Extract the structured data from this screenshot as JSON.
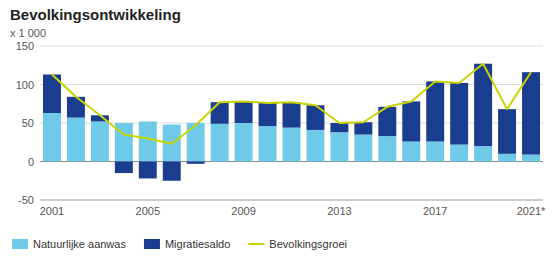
{
  "chart_data": {
    "type": "bar",
    "title": "Bevolkingsontwikkeling",
    "y_label": "x 1 000",
    "stacked": true,
    "categories": [
      "2001",
      null,
      null,
      null,
      "2005",
      null,
      null,
      null,
      "2009",
      null,
      null,
      null,
      "2013",
      null,
      null,
      null,
      "2017",
      null,
      null,
      null,
      "2021*"
    ],
    "series": [
      {
        "name": "Natuurlijke aanwas",
        "color": "#6ecae8",
        "values": [
          63,
          57,
          52,
          50,
          52,
          48,
          50,
          49,
          50,
          46,
          44,
          41,
          38,
          35,
          33,
          26,
          26,
          22,
          20,
          10,
          9
        ]
      },
      {
        "name": "Migratiesaldo",
        "color": "#1a3d8f",
        "values": [
          50,
          27,
          8,
          -15,
          -22,
          -25,
          -3,
          28,
          28,
          30,
          33,
          32,
          12,
          16,
          38,
          52,
          78,
          80,
          107,
          58,
          107
        ]
      },
      {
        "name": "Bevolkingsgroei",
        "type": "line",
        "color": "#c8d400",
        "values": [
          113,
          84,
          60,
          35,
          30,
          23,
          47,
          77,
          78,
          76,
          77,
          73,
          50,
          51,
          71,
          78,
          104,
          102,
          127,
          68,
          116
        ]
      }
    ],
    "ylim": [
      -50,
      150
    ],
    "yticks": [
      -50,
      0,
      50,
      100,
      150
    ],
    "grid": true,
    "legend": "bottom"
  }
}
